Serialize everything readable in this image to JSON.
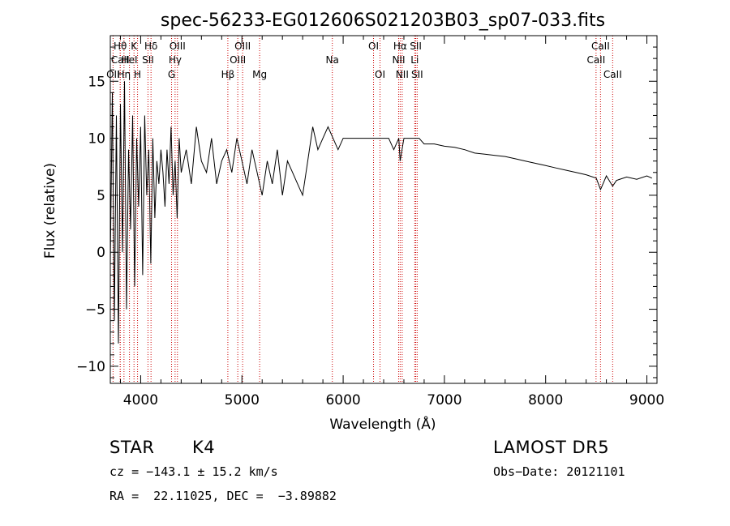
{
  "chart_data": {
    "type": "line",
    "title": "spec-56233-EG012606S021203B03_sp07-033.fits",
    "xlabel": "Wavelength (Å)",
    "ylabel": "Flux (relative)",
    "xlim": [
      3700,
      9100
    ],
    "ylim": [
      -11.5,
      19
    ],
    "xticks": [
      4000,
      5000,
      6000,
      7000,
      8000,
      9000
    ],
    "yticks": [
      -10,
      -5,
      0,
      5,
      10,
      15
    ],
    "grid": false,
    "series": [
      {
        "x": [
          3700,
          3720,
          3740,
          3760,
          3780,
          3800,
          3820,
          3840,
          3860,
          3880,
          3900,
          3920,
          3940,
          3960,
          3980,
          4000,
          4020,
          4040,
          4060,
          4080,
          4100,
          4120,
          4140,
          4160,
          4180,
          4200,
          4220,
          4240,
          4260,
          4280,
          4300,
          4320,
          4340,
          4360,
          4380,
          4400,
          4450,
          4500,
          4550,
          4600,
          4650,
          4700,
          4750,
          4800,
          4850,
          4900,
          4950,
          5000,
          5050,
          5100,
          5150,
          5200,
          5250,
          5300,
          5350,
          5400,
          5450,
          5500,
          5550,
          5600,
          5650,
          5700,
          5750,
          5800,
          5850,
          5900,
          5950,
          6000,
          6050,
          6100,
          6150,
          6200,
          6250,
          6300,
          6350,
          6400,
          6450,
          6500,
          6550,
          6563,
          6600,
          6650,
          6700,
          6750,
          6800,
          6900,
          7000,
          7100,
          7200,
          7300,
          7400,
          7500,
          7600,
          7700,
          7800,
          7900,
          8000,
          8100,
          8200,
          8300,
          8400,
          8500,
          8542,
          8600,
          8662,
          8700,
          8800,
          8900,
          9000,
          9050
        ],
        "y": [
          -1,
          14,
          -6,
          12,
          -8,
          13,
          0,
          15,
          -5,
          9,
          2,
          12,
          -3,
          10,
          4,
          11,
          -2,
          12,
          5,
          9,
          -1,
          10,
          3,
          8,
          6,
          9,
          7,
          4,
          9,
          6,
          11,
          5,
          8,
          3,
          10,
          7,
          9,
          6,
          11,
          8,
          7,
          10,
          6,
          8,
          9,
          7,
          10,
          8,
          6,
          9,
          7,
          5,
          8,
          6,
          9,
          5,
          8,
          7,
          6,
          5,
          8,
          11,
          9,
          10,
          11,
          10,
          9,
          10,
          10,
          10,
          10,
          10,
          10,
          10,
          10,
          10,
          10,
          9,
          10,
          8,
          10,
          10,
          10,
          10,
          9.5,
          9.5,
          9.3,
          9.2,
          9,
          8.7,
          8.6,
          8.5,
          8.4,
          8.2,
          8,
          7.8,
          7.6,
          7.4,
          7.2,
          7,
          6.8,
          6.5,
          5.5,
          6.7,
          5.8,
          6.3,
          6.6,
          6.4,
          6.7,
          6.5
        ]
      }
    ],
    "annotations": [
      {
        "label": "Hθ",
        "x": 3798,
        "row": 1
      },
      {
        "label": "CaII",
        "x": 3798,
        "row": 2
      },
      {
        "label": "OII",
        "x": 3727,
        "row": 3
      },
      {
        "label": "Hη",
        "x": 3835,
        "row": 3
      },
      {
        "label": "K",
        "x": 3934,
        "row": 1
      },
      {
        "label": "HeI",
        "x": 3889,
        "row": 2
      },
      {
        "label": "H",
        "x": 3969,
        "row": 3
      },
      {
        "label": "Hδ",
        "x": 4102,
        "row": 1
      },
      {
        "label": "SII",
        "x": 4072,
        "row": 2
      },
      {
        "label": "OIII",
        "x": 4363,
        "row": 1
      },
      {
        "label": "Hγ",
        "x": 4340,
        "row": 2
      },
      {
        "label": "G",
        "x": 4305,
        "row": 3
      },
      {
        "label": "OIII",
        "x": 5007,
        "row": 1
      },
      {
        "label": "OIII",
        "x": 4959,
        "row": 2
      },
      {
        "label": "Hβ",
        "x": 4861,
        "row": 3
      },
      {
        "label": "Mg",
        "x": 5175,
        "row": 3
      },
      {
        "label": "Na",
        "x": 5893,
        "row": 2
      },
      {
        "label": "OI",
        "x": 6300,
        "row": 1
      },
      {
        "label": "OI",
        "x": 6364,
        "row": 3
      },
      {
        "label": "Hα",
        "x": 6563,
        "row": 1
      },
      {
        "label": "NII",
        "x": 6548,
        "row": 2
      },
      {
        "label": "NII",
        "x": 6583,
        "row": 3
      },
      {
        "label": "SII",
        "x": 6717,
        "row": 1
      },
      {
        "label": "Li",
        "x": 6707,
        "row": 2
      },
      {
        "label": "SII",
        "x": 6731,
        "row": 3
      },
      {
        "label": "CaII",
        "x": 8542,
        "row": 1
      },
      {
        "label": "CaII",
        "x": 8498,
        "row": 2
      },
      {
        "label": "CaII",
        "x": 8662,
        "row": 3
      }
    ]
  },
  "info": {
    "class": "STAR",
    "subclass": "K4",
    "survey": "LAMOST DR5",
    "cz": "cz = −143.1 ± 15.2 km/s",
    "obs_date": "Obs−Date: 20121101",
    "coords": "RA =  22.11025, DEC =  −3.89882"
  },
  "colors": {
    "line": "#000000",
    "marker": "#cc0000"
  }
}
